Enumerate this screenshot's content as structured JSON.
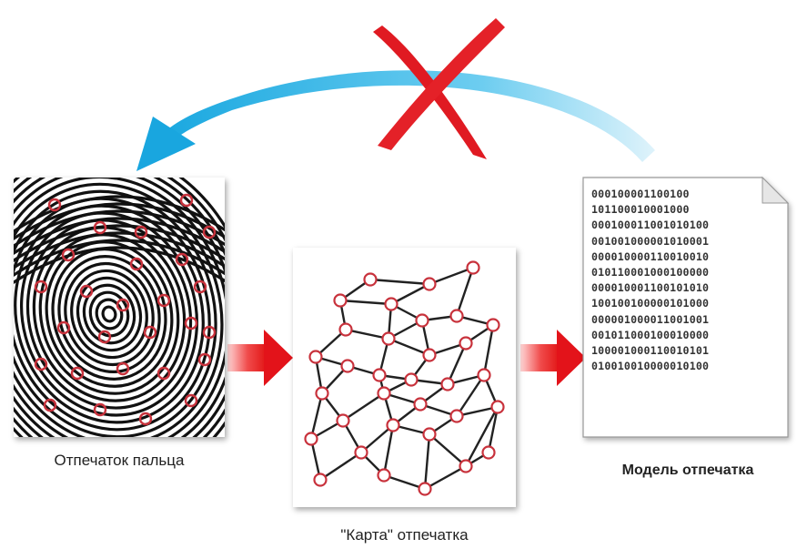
{
  "labels": {
    "fingerprint": "Отпечаток пальца",
    "map": "\"Карта\" отпечатка",
    "model": "Модель отпечатка"
  },
  "model_bits": [
    "000100001100100",
    "101100010001000",
    "000100011001010100",
    "001001000001010001",
    "000010000110010010",
    "010110001000100000",
    "000010001100101010",
    "100100100000101000",
    "000001000011001001",
    "001011000100010000",
    "100001000110010101",
    "010010010000010100"
  ],
  "colors": {
    "arrow_back": "#2ab4e6",
    "arrow_forward": "#e8141b",
    "cross": "#e01a22",
    "node": "#c8323c"
  }
}
